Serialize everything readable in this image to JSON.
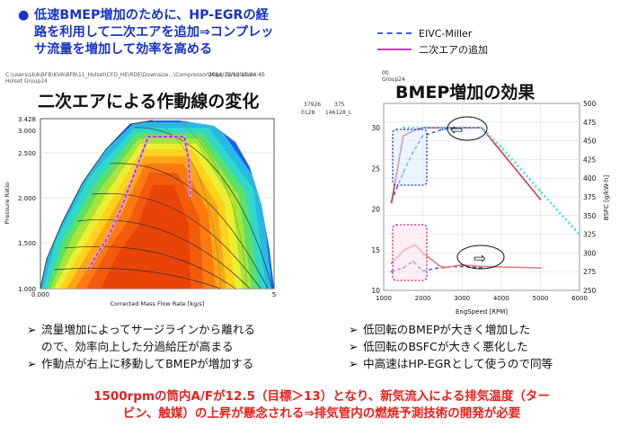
{
  "intro": {
    "bullet": "●",
    "lines": [
      "低速BMEP増加のために、HP-EGRの経",
      "路を利用して二次エアを追加⇒コンプレッ",
      "サ流量を増加して効率を高める"
    ]
  },
  "legend": [
    {
      "label": "EIVC-Miller",
      "color": "#3a5fd8",
      "style": "dashed"
    },
    {
      "label": "二次エアの追加",
      "color": "#c03fb4",
      "style": "solid"
    }
  ],
  "source_header": {
    "path": "C:\\users\\LKA\\BFB\\KVA\\BFB\\11_Holset\\CFD_HE\\RDE\\Downsize...\\Compressor\\Map...Simulation",
    "sub": "Holset Group24",
    "date": "2014/11/13",
    "time": "15:04:45",
    "n1": "37926",
    "n2": "0128",
    "n3": "146128_L",
    "n4": "375",
    "n5": "Group24",
    "n6": "00"
  },
  "left_chart": {
    "title": "二次エアによる作動線の変化",
    "xlabel": "Corrected Mass Flow Rate [kg/s]",
    "ylabel": "Pressure Ratio",
    "x_ticks": [
      {
        "v": 0,
        "label": "0.000"
      },
      {
        "v": 1,
        "label": "5"
      }
    ],
    "y_ticks": [
      {
        "v": 1.0,
        "label": "1.000"
      },
      {
        "v": 1.5,
        "label": "1.500"
      },
      {
        "v": 2.0,
        "label": "2.000"
      },
      {
        "v": 2.5,
        "label": "2.500"
      },
      {
        "v": 3.0,
        "label": "3.000"
      },
      {
        "v": 3.428,
        "label": "3.428"
      }
    ]
  },
  "right_chart": {
    "title": "BMEP増加の効果",
    "xlabel": "EngSpeed [RPM]",
    "ylabel_right": "BSFC [g/kW-h]",
    "x_ticks": [
      1000,
      2000,
      3000,
      4000,
      5000,
      6000
    ],
    "y_left_ticks": [
      10,
      15,
      20,
      25,
      30
    ],
    "y_right_ticks": [
      250,
      275,
      300,
      325,
      350,
      375,
      400,
      425,
      450,
      475,
      500
    ],
    "arrow_top": "⇦",
    "arrow_bottom": "⇨"
  },
  "chart_data": {
    "type": "line",
    "title": "BMEP増加の効果",
    "xlabel": "EngSpeed [RPM]",
    "ylabel": "",
    "xlim": [
      1000,
      6000
    ],
    "ylim": [
      10,
      33
    ],
    "y2lim": [
      250,
      500
    ],
    "series": [
      {
        "name": "EIVC-Miller",
        "metric": "BMEP",
        "axis": "left",
        "color": "#3a5fd8",
        "style": "dashed",
        "x": [
          1200,
          1500,
          1750,
          2000,
          2500,
          3000,
          3500
        ],
        "y": [
          21.0,
          24.5,
          27.0,
          29.0,
          29.8,
          30.0,
          30.0
        ]
      },
      {
        "name": "二次エアの追加",
        "metric": "BMEP",
        "axis": "left",
        "color": "#d63b4a",
        "style": "solid",
        "x": [
          1200,
          1500,
          1750,
          2000,
          2500,
          3000,
          3500,
          5000
        ],
        "y": [
          20.8,
          29.0,
          29.6,
          30.0,
          30.0,
          30.0,
          30.0,
          21.2
        ]
      },
      {
        "name": "",
        "metric": "BMEP",
        "axis": "left",
        "color": "#55ddee",
        "style": "dotted",
        "x": [
          1500,
          2000,
          2500,
          3000,
          3500,
          4000,
          4500,
          5000,
          5500,
          6000
        ],
        "y": [
          30.0,
          30.0,
          30.0,
          30.0,
          30.0,
          27.6,
          24.9,
          22.2,
          19.5,
          16.9
        ]
      },
      {
        "name": "EIVC-Miller",
        "metric": "BSFC",
        "axis": "right",
        "color": "#3a5fd8",
        "style": "dashed",
        "x": [
          1200,
          1500,
          1750,
          2000,
          2500,
          3000,
          3500
        ],
        "y": [
          275,
          280,
          289,
          276,
          281,
          282,
          280
        ]
      },
      {
        "name": "二次エアの追加",
        "metric": "BSFC",
        "axis": "right",
        "color": "#e8787e",
        "style": "solid",
        "x": [
          1200,
          1500,
          1800,
          2000,
          2500,
          3000,
          3500,
          5000
        ],
        "y": [
          286,
          303,
          311,
          300,
          280,
          284,
          282,
          280
        ]
      }
    ]
  },
  "bullets_left": [
    {
      "mark": "➢",
      "lines": [
        "流量増加によってサージラインから離れる",
        "ので、効率向上した分過給圧が高まる"
      ]
    },
    {
      "mark": "➢",
      "lines": [
        "作動点が右上に移動してBMEPが増加する"
      ]
    }
  ],
  "bullets_right": [
    {
      "mark": "➢",
      "lines": [
        "低回転のBMEPが大きく増加した"
      ]
    },
    {
      "mark": "➢",
      "lines": [
        "低回転のBSFCが大きく悪化した"
      ]
    },
    {
      "mark": "➢",
      "lines": [
        "中高速はHP-EGRとして使うので同等"
      ]
    }
  ],
  "footer": {
    "lines": [
      "1500rpmの筒内A/Fが12.5（目標＞13）となり、新気流入による排気温度（ター",
      "ビン、触媒）の上昇が懸念される⇒排気管内の燃焼予測技術の開発が必要"
    ]
  }
}
